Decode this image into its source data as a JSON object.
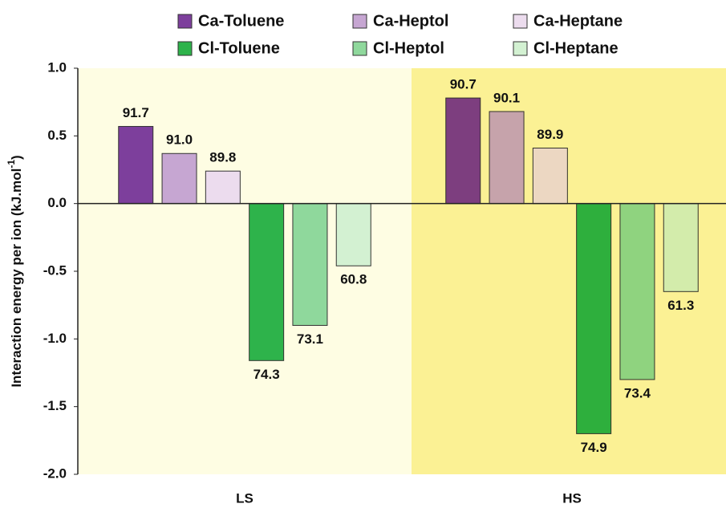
{
  "chart_data": {
    "type": "bar",
    "ylabel": "Interaction energy per ion (kJ.mol",
    "ylabel_superscript": "-1",
    "ylabel_suffix": ")",
    "categories": [
      "LS",
      "HS"
    ],
    "series": [
      {
        "name": "Ca-Toluene",
        "color": "#7d3f9c",
        "values": [
          0.57,
          0.78
        ],
        "labels": [
          "91.7",
          "90.7"
        ]
      },
      {
        "name": "Ca-Heptol",
        "color": "#c6a6d2",
        "values": [
          0.37,
          0.68
        ],
        "labels": [
          "91.0",
          "90.1"
        ]
      },
      {
        "name": "Ca-Heptane",
        "color": "#ecdcee",
        "values": [
          0.24,
          0.41
        ],
        "labels": [
          "89.8",
          "89.9"
        ]
      },
      {
        "name": "Cl-Toluene",
        "color": "#2eb34b",
        "values": [
          -1.16,
          -1.7
        ],
        "labels": [
          "74.3",
          "74.9"
        ]
      },
      {
        "name": "Cl-Heptol",
        "color": "#8fd89c",
        "values": [
          -0.9,
          -1.3
        ],
        "labels": [
          "73.1",
          "73.4"
        ]
      },
      {
        "name": "Cl-Heptane",
        "color": "#d3f1d2",
        "values": [
          -0.46,
          -0.65
        ],
        "labels": [
          "60.8",
          "61.3"
        ]
      }
    ],
    "ylim": [
      -2,
      1
    ],
    "yticks": [
      {
        "value": -2,
        "label": "-2.0"
      },
      -1.5,
      {
        "value": -1,
        "label": "-1.0"
      },
      -0.5,
      {
        "value": 0,
        "label": "0.0"
      },
      0.5,
      {
        "value": 1,
        "label": "1.0"
      }
    ],
    "grid": false,
    "legend": "top"
  }
}
